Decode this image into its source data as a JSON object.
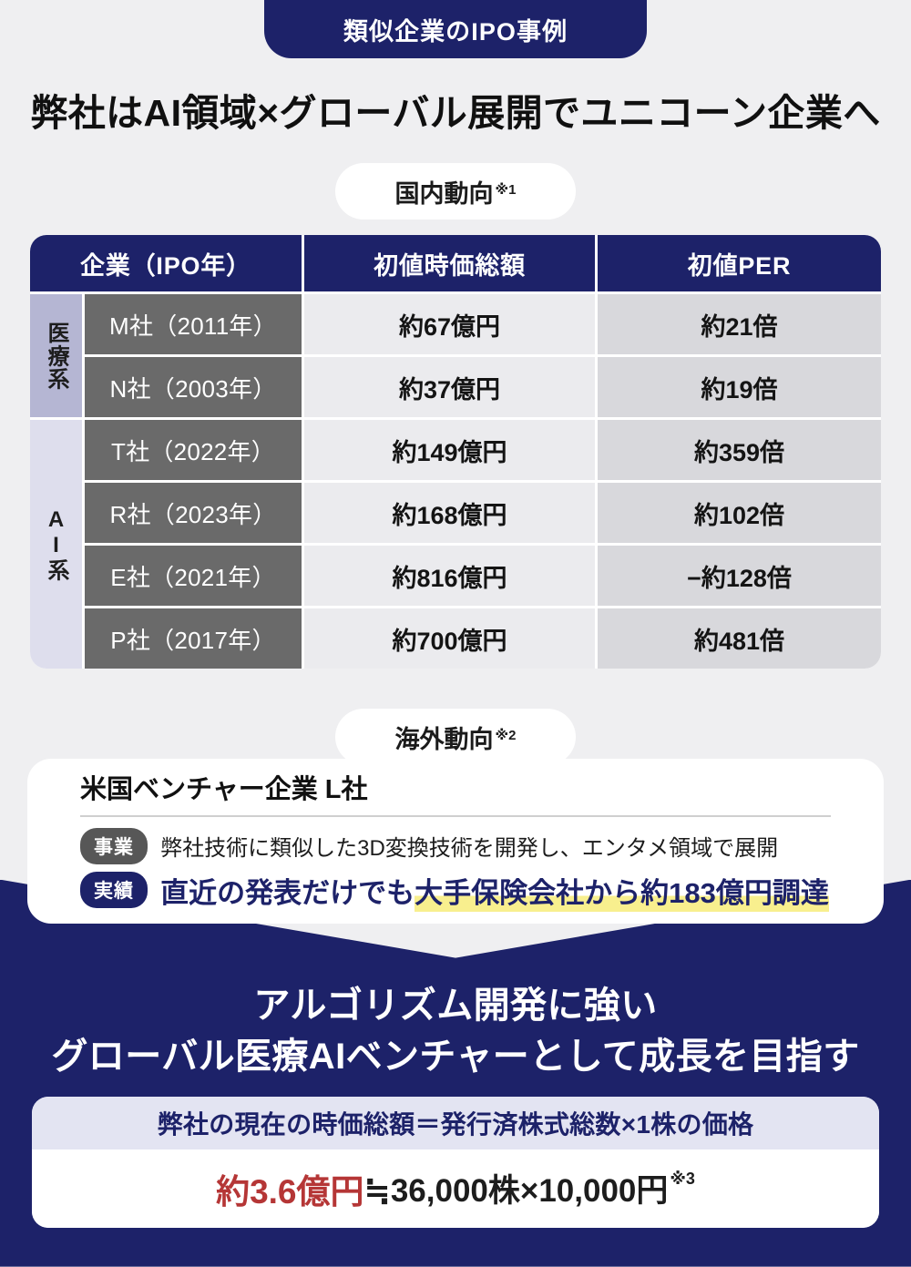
{
  "header": {
    "badge": "類似企業のIPO事例",
    "title": "弊社はAI領域×グローバル展開でユニコーン企業へ"
  },
  "domestic": {
    "pill_label": "国内動向",
    "pill_note": "※1"
  },
  "table": {
    "headers": {
      "company": "企業（IPO年）",
      "market_cap": "初値時価総額",
      "per": "初値PER"
    },
    "groups": {
      "medical": "医療系",
      "ai": "AI系"
    },
    "rows": [
      {
        "name": "M社（2011年）",
        "cap": "約67億円",
        "per": "約21倍"
      },
      {
        "name": "N社（2003年）",
        "cap": "約37億円",
        "per": "約19倍"
      },
      {
        "name": "T社（2022年）",
        "cap": "約149億円",
        "per": "約359倍"
      },
      {
        "name": "R社（2023年）",
        "cap": "約168億円",
        "per": "約102倍"
      },
      {
        "name": "E社（2021年）",
        "cap": "約816億円",
        "per": "−約128倍"
      },
      {
        "name": "P社（2017年）",
        "cap": "約700億円",
        "per": "約481倍"
      }
    ]
  },
  "overseas": {
    "pill_label": "海外動向",
    "pill_note": "※2",
    "company_heading": "米国ベンチャー企業 L社",
    "business_label": "事業",
    "business_text": "弊社技術に類似した3D変換技術を開発し、エンタメ領域で展開",
    "result_label": "実績",
    "result_text_plain": "直近の発表だけでも",
    "result_text_highlight": "大手保険会社から約183億円調達"
  },
  "vision": {
    "line1": "アルゴリズム開発に強い",
    "line2": "グローバル医療AIベンチャーとして成長を目指す"
  },
  "valuation": {
    "band_text": "弊社の現在の時価総額＝発行済株式総数×1株の価格",
    "amount": "約3.6億円",
    "calc": "≒36,000株×10,000円",
    "note": "※3"
  },
  "colors": {
    "navy": "#1d2269",
    "page_bg": "#efeff1",
    "medical_strip": "#b5b6d3",
    "ai_strip": "#dedeed",
    "company_cell": "#6a6a6a",
    "cap_cell": "#ebebee",
    "per_cell": "#d8d8dc",
    "highlight_yellow": "#f8ef8e",
    "amount_red": "#b53636",
    "band_lavender": "#e3e4f2"
  }
}
